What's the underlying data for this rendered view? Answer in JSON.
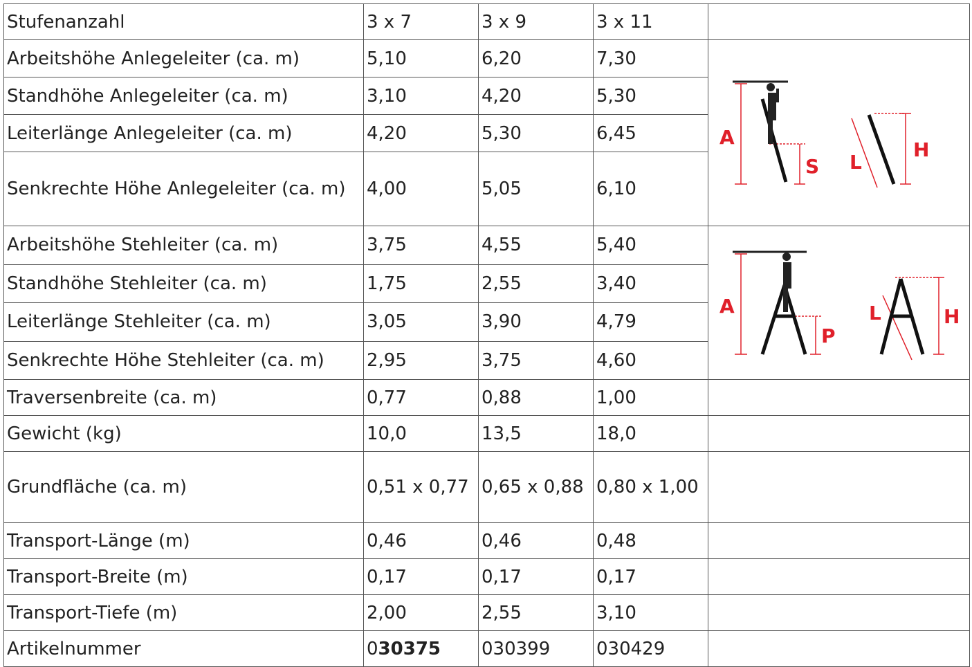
{
  "table": {
    "rows": [
      [
        "Stufenanzahl",
        "3 x 7",
        "3 x 9",
        "3 x 11"
      ],
      [
        "Arbeitshöhe Anlegeleiter (ca. m)",
        "5,10",
        "6,20",
        "7,30"
      ],
      [
        "Standhöhe Anlegeleiter (ca. m)",
        "3,10",
        "4,20",
        "5,30"
      ],
      [
        "Leiterlänge Anlegeleiter (ca. m)",
        "4,20",
        "5,30",
        "6,45"
      ],
      [
        "Senkrechte Höhe Anlegeleiter (ca. m)",
        "4,00",
        "5,05",
        "6,10"
      ],
      [
        "Arbeitshöhe Stehleiter (ca. m)",
        "3,75",
        "4,55",
        "5,40"
      ],
      [
        "Standhöhe Stehleiter (ca. m)",
        "1,75",
        "2,55",
        "3,40"
      ],
      [
        "Leiterlänge Stehleiter (ca. m)",
        "3,05",
        "3,90",
        "4,79"
      ],
      [
        "Senkrechte Höhe Stehleiter (ca. m)",
        "2,95",
        "3,75",
        "4,60"
      ],
      [
        "Traversenbreite (ca. m)",
        "0,77",
        "0,88",
        "1,00"
      ],
      [
        "Gewicht (kg)",
        "10,0",
        "13,5",
        "18,0"
      ],
      [
        "Grundfläche (ca. m)",
        "0,51 x 0,77",
        "0,65 x 0,88",
        "0,80 x 1,00"
      ],
      [
        "Transport-Länge (m)",
        "0,46",
        "0,46",
        "0,48"
      ],
      [
        "Transport-Breite (m)",
        "0,17",
        "0,17",
        "0,17"
      ],
      [
        "Transport-Tiefe (m)",
        "2,00",
        "2,55",
        "3,10"
      ],
      [
        "Artikelnummer",
        {
          "plain": "0",
          "bold": "30375"
        },
        "030399",
        "030429"
      ]
    ]
  },
  "diagrams": [
    {
      "labels": [
        "A",
        "S",
        "L",
        "H"
      ]
    },
    {
      "labels": [
        "A",
        "P",
        "L",
        "H"
      ]
    }
  ]
}
